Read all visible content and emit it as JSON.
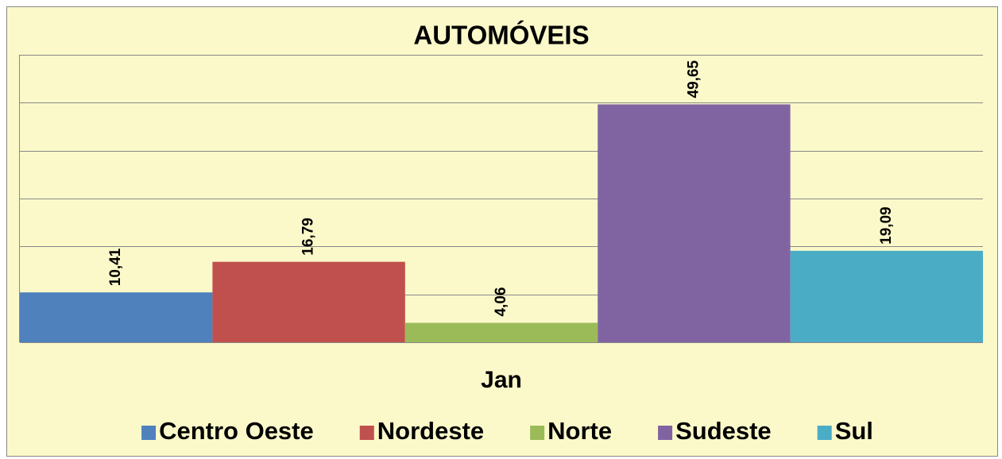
{
  "chart_data": {
    "type": "bar",
    "title": "AUTOMÓVEIS",
    "categories": [
      "Jan"
    ],
    "series": [
      {
        "name": "Centro Oeste",
        "color": "#4f81bd",
        "values": [
          10.41
        ],
        "value_labels": [
          "10,41"
        ]
      },
      {
        "name": "Nordeste",
        "color": "#c0504d",
        "values": [
          16.79
        ],
        "value_labels": [
          "16,79"
        ]
      },
      {
        "name": "Norte",
        "color": "#9bbb59",
        "values": [
          4.06
        ],
        "value_labels": [
          "4,06"
        ]
      },
      {
        "name": "Sudeste",
        "color": "#8064a2",
        "values": [
          49.65
        ],
        "value_labels": [
          "49,65"
        ]
      },
      {
        "name": "Sul",
        "color": "#4bacc6",
        "values": [
          19.09
        ],
        "value_labels": [
          "19,09"
        ]
      }
    ],
    "ylim": [
      0,
      60
    ],
    "yticks": [
      0,
      10,
      20,
      30,
      40,
      50,
      60
    ],
    "grid": true,
    "legend": "bottom"
  }
}
